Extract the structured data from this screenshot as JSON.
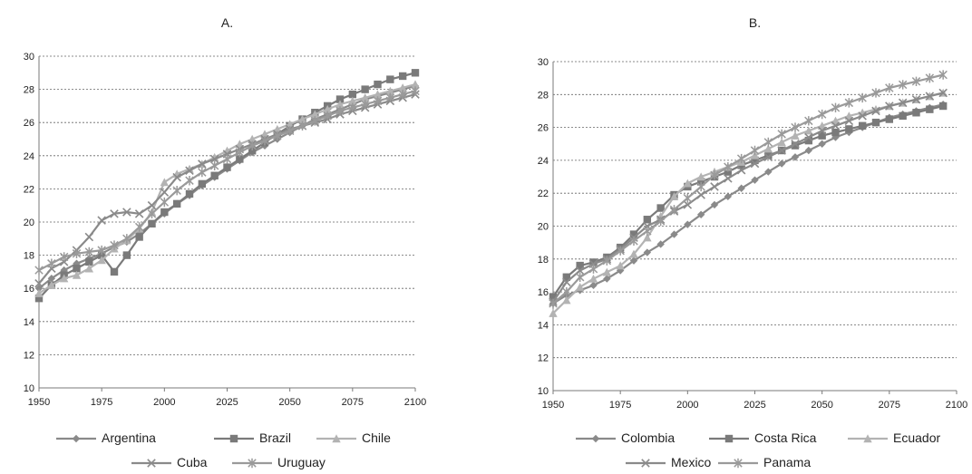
{
  "chart_data": [
    {
      "type": "line",
      "title": "A.",
      "xlabel": "",
      "ylabel": "",
      "xlim": [
        1950,
        2100
      ],
      "ylim": [
        10,
        30
      ],
      "xticks": [
        1950,
        1975,
        2000,
        2025,
        2050,
        2075,
        2100
      ],
      "yticks": [
        10,
        12,
        14,
        16,
        18,
        20,
        22,
        24,
        26,
        28,
        30
      ],
      "grid": "horizontal dashed",
      "legend": "bottom",
      "series": [
        {
          "name": "Argentina",
          "color": "#8a8a8a",
          "marker": "diamond",
          "x": [
            1950,
            1955,
            1960,
            1965,
            1970,
            1975,
            1980,
            1985,
            1990,
            1995,
            2000,
            2005,
            2010,
            2015,
            2020,
            2025,
            2030,
            2035,
            2040,
            2045,
            2050,
            2055,
            2060,
            2065,
            2070,
            2075,
            2080,
            2085,
            2090,
            2095,
            2100
          ],
          "y": [
            16.0,
            16.6,
            17.1,
            17.5,
            17.8,
            18.1,
            18.5,
            18.8,
            19.3,
            19.9,
            20.5,
            21.1,
            21.6,
            22.2,
            22.7,
            23.2,
            23.7,
            24.2,
            24.6,
            25.0,
            25.4,
            25.8,
            26.2,
            26.5,
            26.8,
            27.1,
            27.4,
            27.6,
            27.8,
            28.0,
            28.2
          ]
        },
        {
          "name": "Brazil",
          "color": "#7a7a7a",
          "marker": "square",
          "x": [
            1950,
            1955,
            1960,
            1965,
            1970,
            1975,
            1980,
            1985,
            1990,
            1995,
            2000,
            2005,
            2010,
            2015,
            2020,
            2025,
            2030,
            2035,
            2040,
            2045,
            2050,
            2055,
            2060,
            2065,
            2070,
            2075,
            2080,
            2085,
            2090,
            2095,
            2100
          ],
          "y": [
            15.4,
            16.2,
            16.8,
            17.2,
            17.6,
            18.0,
            17.0,
            18.0,
            19.1,
            19.9,
            20.6,
            21.1,
            21.7,
            22.3,
            22.8,
            23.3,
            23.8,
            24.3,
            24.8,
            25.3,
            25.8,
            26.2,
            26.6,
            27.0,
            27.4,
            27.7,
            28.0,
            28.3,
            28.6,
            28.8,
            29.0
          ]
        },
        {
          "name": "Chile",
          "color": "#b3b3b3",
          "marker": "triangle",
          "x": [
            1950,
            1955,
            1960,
            1965,
            1970,
            1975,
            1980,
            1985,
            1990,
            1995,
            2000,
            2005,
            2010,
            2015,
            2020,
            2025,
            2030,
            2035,
            2040,
            2045,
            2050,
            2055,
            2060,
            2065,
            2070,
            2075,
            2080,
            2085,
            2090,
            2095,
            2100
          ],
          "y": [
            15.7,
            16.2,
            16.6,
            16.8,
            17.2,
            17.7,
            18.4,
            18.9,
            19.6,
            20.6,
            22.4,
            22.9,
            23.2,
            23.5,
            23.9,
            24.3,
            24.7,
            25.0,
            25.3,
            25.6,
            25.9,
            26.2,
            26.5,
            26.8,
            27.1,
            27.3,
            27.5,
            27.7,
            27.9,
            28.1,
            28.3
          ]
        },
        {
          "name": "Cuba",
          "color": "#8a8a8a",
          "marker": "x",
          "x": [
            1950,
            1955,
            1960,
            1965,
            1970,
            1975,
            1980,
            1985,
            1990,
            1995,
            2000,
            2005,
            2010,
            2015,
            2020,
            2025,
            2030,
            2035,
            2040,
            2045,
            2050,
            2055,
            2060,
            2065,
            2070,
            2075,
            2080,
            2085,
            2090,
            2095,
            2100
          ],
          "y": [
            16.3,
            17.2,
            17.6,
            18.3,
            19.1,
            20.1,
            20.5,
            20.6,
            20.5,
            21.0,
            21.8,
            22.7,
            23.1,
            23.5,
            23.8,
            24.1,
            24.4,
            24.7,
            25.0,
            25.3,
            25.6,
            25.8,
            26.0,
            26.2,
            26.5,
            26.7,
            26.9,
            27.1,
            27.3,
            27.5,
            27.7
          ]
        },
        {
          "name": "Uruguay",
          "color": "#9a9a9a",
          "marker": "asterisk",
          "x": [
            1950,
            1955,
            1960,
            1965,
            1970,
            1975,
            1980,
            1985,
            1990,
            1995,
            2000,
            2005,
            2010,
            2015,
            2020,
            2025,
            2030,
            2035,
            2040,
            2045,
            2050,
            2055,
            2060,
            2065,
            2070,
            2075,
            2080,
            2085,
            2090,
            2095,
            2100
          ],
          "y": [
            17.1,
            17.5,
            17.9,
            18.1,
            18.2,
            18.3,
            18.6,
            19.0,
            19.7,
            20.5,
            21.2,
            21.9,
            22.5,
            23.0,
            23.4,
            23.8,
            24.2,
            24.6,
            24.9,
            25.2,
            25.5,
            25.8,
            26.1,
            26.4,
            26.7,
            26.9,
            27.1,
            27.3,
            27.5,
            27.7,
            27.9
          ]
        }
      ]
    },
    {
      "type": "line",
      "title": "B.",
      "xlabel": "",
      "ylabel": "",
      "xlim": [
        1950,
        2100
      ],
      "ylim": [
        10,
        30
      ],
      "xticks": [
        1950,
        1975,
        2000,
        2025,
        2050,
        2075,
        2100
      ],
      "yticks": [
        10,
        12,
        14,
        16,
        18,
        20,
        22,
        24,
        26,
        28,
        30
      ],
      "grid": "horizontal dashed",
      "legend": "bottom",
      "series": [
        {
          "name": "Colombia",
          "color": "#8a8a8a",
          "marker": "diamond",
          "x": [
            1950,
            1955,
            1960,
            1965,
            1970,
            1975,
            1980,
            1985,
            1990,
            1995,
            2000,
            2005,
            2010,
            2015,
            2020,
            2025,
            2030,
            2035,
            2040,
            2045,
            2050,
            2055,
            2060,
            2065,
            2070,
            2075,
            2080,
            2085,
            2090,
            2095
          ],
          "y": [
            15.3,
            15.8,
            16.1,
            16.4,
            16.8,
            17.3,
            17.9,
            18.4,
            18.9,
            19.5,
            20.1,
            20.7,
            21.3,
            21.8,
            22.3,
            22.8,
            23.3,
            23.8,
            24.2,
            24.6,
            25.0,
            25.4,
            25.7,
            26.0,
            26.3,
            26.6,
            26.8,
            27.0,
            27.2,
            27.4
          ]
        },
        {
          "name": "Costa Rica",
          "color": "#7a7a7a",
          "marker": "square",
          "x": [
            1950,
            1955,
            1960,
            1965,
            1970,
            1975,
            1980,
            1985,
            1990,
            1995,
            2000,
            2005,
            2010,
            2015,
            2020,
            2025,
            2030,
            2035,
            2040,
            2045,
            2050,
            2055,
            2060,
            2065,
            2070,
            2075,
            2080,
            2085,
            2090,
            2095
          ],
          "y": [
            15.7,
            16.9,
            17.6,
            17.8,
            18.1,
            18.7,
            19.5,
            20.4,
            21.1,
            21.9,
            22.4,
            22.7,
            23.0,
            23.3,
            23.7,
            24.0,
            24.3,
            24.6,
            24.9,
            25.2,
            25.5,
            25.7,
            25.9,
            26.1,
            26.3,
            26.5,
            26.7,
            26.9,
            27.1,
            27.3
          ]
        },
        {
          "name": "Ecuador",
          "color": "#b3b3b3",
          "marker": "triangle",
          "x": [
            1950,
            1955,
            1960,
            1965,
            1970,
            1975,
            1980,
            1985,
            1990,
            1995,
            2000,
            2005,
            2010,
            2015,
            2020,
            2025,
            2030,
            2035,
            2040,
            2045,
            2050,
            2055,
            2060,
            2065,
            2070,
            2075,
            2080,
            2085,
            2090,
            2095
          ],
          "y": [
            14.7,
            15.5,
            16.3,
            16.8,
            17.2,
            17.6,
            18.3,
            19.3,
            20.6,
            21.8,
            22.6,
            23.0,
            23.3,
            23.6,
            23.9,
            24.3,
            24.7,
            25.1,
            25.5,
            25.8,
            26.1,
            26.4,
            26.7,
            26.9,
            27.1,
            27.3,
            27.5,
            27.7,
            27.9,
            28.1
          ]
        },
        {
          "name": "Mexico",
          "color": "#8a8a8a",
          "marker": "x",
          "x": [
            1950,
            1955,
            1960,
            1965,
            1970,
            1975,
            1980,
            1985,
            1990,
            1995,
            2000,
            2005,
            2010,
            2015,
            2020,
            2025,
            2030,
            2035,
            2040,
            2045,
            2050,
            2055,
            2060,
            2065,
            2070,
            2075,
            2080,
            2085,
            2090,
            2095
          ],
          "y": [
            15.4,
            16.6,
            17.3,
            17.7,
            18.0,
            18.6,
            19.3,
            20.0,
            20.4,
            20.9,
            21.3,
            21.9,
            22.4,
            22.9,
            23.4,
            23.8,
            24.2,
            24.6,
            25.0,
            25.4,
            25.8,
            26.1,
            26.4,
            26.7,
            27.0,
            27.3,
            27.5,
            27.7,
            27.9,
            28.1
          ]
        },
        {
          "name": "Panama",
          "color": "#9a9a9a",
          "marker": "asterisk",
          "x": [
            1950,
            1955,
            1960,
            1965,
            1970,
            1975,
            1980,
            1985,
            1990,
            1995,
            2000,
            2005,
            2010,
            2015,
            2020,
            2025,
            2030,
            2035,
            2040,
            2045,
            2050,
            2055,
            2060,
            2065,
            2070,
            2075,
            2080,
            2085,
            2090,
            2095
          ],
          "y": [
            15.3,
            16.0,
            16.9,
            17.4,
            17.9,
            18.5,
            19.1,
            19.7,
            20.3,
            21.0,
            21.7,
            22.4,
            23.1,
            23.6,
            24.1,
            24.6,
            25.1,
            25.6,
            26.0,
            26.4,
            26.8,
            27.2,
            27.5,
            27.8,
            28.1,
            28.4,
            28.6,
            28.8,
            29.0,
            29.2
          ]
        }
      ]
    }
  ]
}
